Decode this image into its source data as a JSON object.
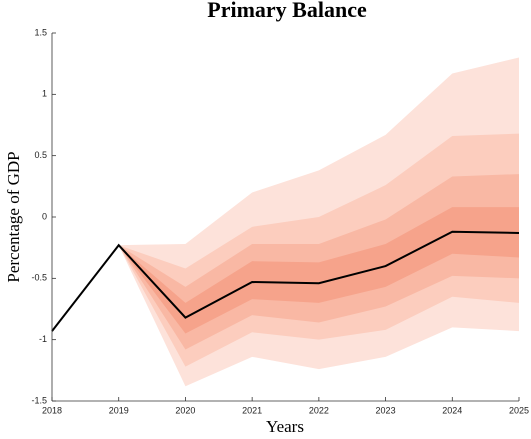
{
  "chart_data": {
    "type": "fan",
    "title": "Primary Balance",
    "x_label": "Years",
    "y_label": "Percentage of GDP",
    "x": [
      2018,
      2019,
      2020,
      2021,
      2022,
      2023,
      2024,
      2025
    ],
    "xlim": [
      2018,
      2025
    ],
    "xticks": [
      2018,
      2019,
      2020,
      2021,
      2022,
      2023,
      2024,
      2025
    ],
    "ylim": [
      -1.5,
      1.5
    ],
    "yticks": [
      -1.5,
      -1,
      -0.5,
      0,
      0.5,
      1,
      1.5
    ],
    "bands": [
      {
        "color": "#fde2da",
        "upper": [
          null,
          -0.23,
          -0.22,
          0.2,
          0.38,
          0.67,
          1.17,
          1.3
        ],
        "lower": [
          null,
          -0.23,
          -1.38,
          -1.14,
          -1.24,
          -1.14,
          -0.9,
          -0.93
        ]
      },
      {
        "color": "#fccdbe",
        "upper": [
          null,
          -0.23,
          -0.42,
          -0.08,
          0.0,
          0.26,
          0.66,
          0.68
        ],
        "lower": [
          null,
          -0.23,
          -1.22,
          -0.94,
          -1.0,
          -0.92,
          -0.65,
          -0.7
        ]
      },
      {
        "color": "#f9b8a4",
        "upper": [
          null,
          -0.23,
          -0.57,
          -0.22,
          -0.22,
          -0.02,
          0.33,
          0.35
        ],
        "lower": [
          null,
          -0.23,
          -1.08,
          -0.8,
          -0.86,
          -0.73,
          -0.48,
          -0.5
        ]
      },
      {
        "color": "#f6a38b",
        "upper": [
          null,
          -0.23,
          -0.7,
          -0.36,
          -0.37,
          -0.22,
          0.08,
          0.08
        ],
        "lower": [
          null,
          -0.23,
          -0.95,
          -0.67,
          -0.7,
          -0.57,
          -0.3,
          -0.33
        ]
      }
    ],
    "line": {
      "color": "#000000",
      "values": [
        -0.93,
        -0.23,
        -0.82,
        -0.53,
        -0.54,
        -0.4,
        -0.12,
        -0.13
      ]
    }
  }
}
